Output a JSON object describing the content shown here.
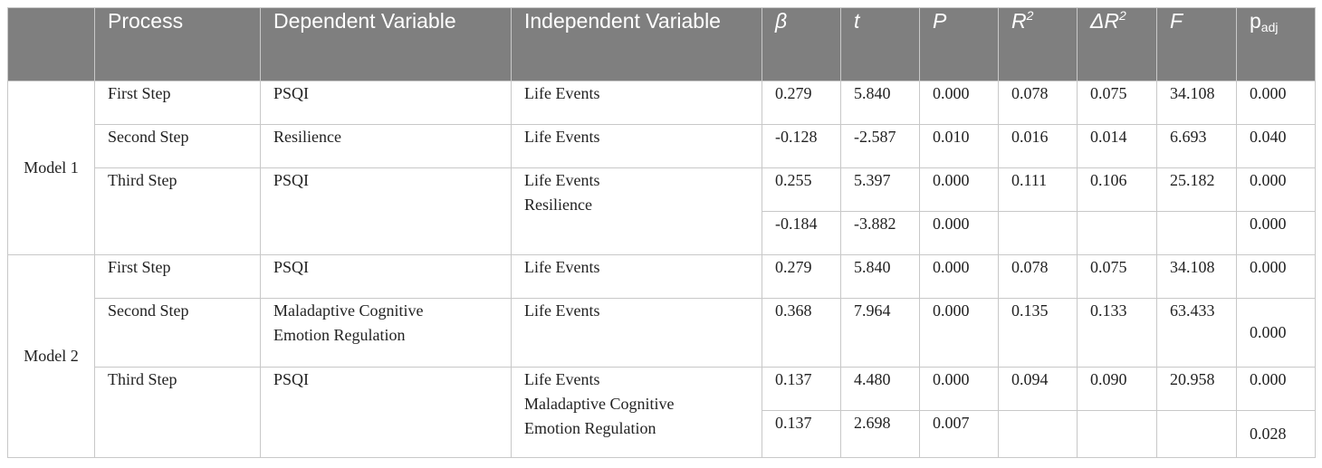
{
  "headers": {
    "process": "Process",
    "dependent": "Dependent Variable",
    "independent": "Independent Variable",
    "beta": "β",
    "t": "t",
    "p": "P",
    "r2_base": "R",
    "r2_sup": "2",
    "dr2_base": "ΔR",
    "dr2_sup": "2",
    "f": "F",
    "padj_base": "p",
    "padj_sub": "adj"
  },
  "models": [
    {
      "label": "Model 1",
      "steps": [
        {
          "process": "First Step",
          "dependent": [
            "PSQI"
          ],
          "independent": [
            "Life Events"
          ],
          "beta": "0.279",
          "t": "5.840",
          "p": "0.000",
          "r2": "0.078",
          "dr2": "0.075",
          "f": "34.108",
          "padj": "0.000"
        },
        {
          "process": "Second Step",
          "dependent": [
            "Resilience"
          ],
          "independent": [
            "Life Events"
          ],
          "beta": "-0.128",
          "t": "-2.587",
          "p": "0.010",
          "r2": "0.016",
          "dr2": "0.014",
          "f": "6.693",
          "padj": "0.040"
        },
        {
          "process": "Third Step",
          "dependent": [
            "PSQI"
          ],
          "independent": [
            "Life Events",
            "Resilience"
          ],
          "rows": [
            {
              "beta": "0.255",
              "t": "5.397",
              "p": "0.000",
              "r2": "0.111",
              "dr2": "0.106",
              "f": "25.182",
              "padj": "0.000"
            },
            {
              "beta": "-0.184",
              "t": "-3.882",
              "p": "0.000",
              "r2": "",
              "dr2": "",
              "f": "",
              "padj": "0.000"
            }
          ]
        }
      ]
    },
    {
      "label": "Model 2",
      "steps": [
        {
          "process": "First Step",
          "dependent": [
            "PSQI"
          ],
          "independent": [
            "Life Events"
          ],
          "beta": "0.279",
          "t": "5.840",
          "p": "0.000",
          "r2": "0.078",
          "dr2": "0.075",
          "f": "34.108",
          "padj": "0.000"
        },
        {
          "process": "Second Step",
          "dependent": [
            "Maladaptive Cognitive",
            "Emotion Regulation"
          ],
          "independent": [
            "Life Events"
          ],
          "beta": "0.368",
          "t": "7.964",
          "p": "0.000",
          "r2": "0.135",
          "dr2": "0.133",
          "f": "63.433",
          "padj": "0.000"
        },
        {
          "process": "Third Step",
          "dependent": [
            "PSQI"
          ],
          "independent": [
            "Life Events",
            "Maladaptive Cognitive",
            "Emotion Regulation"
          ],
          "rows": [
            {
              "beta": "0.137",
              "t": "4.480",
              "p": "0.000",
              "r2": "0.094",
              "dr2": "0.090",
              "f": "20.958",
              "padj": "0.000"
            },
            {
              "beta": "0.137",
              "t": "2.698",
              "p": "0.007",
              "r2": "",
              "dr2": "",
              "f": "",
              "padj": "0.028"
            }
          ]
        }
      ]
    }
  ]
}
